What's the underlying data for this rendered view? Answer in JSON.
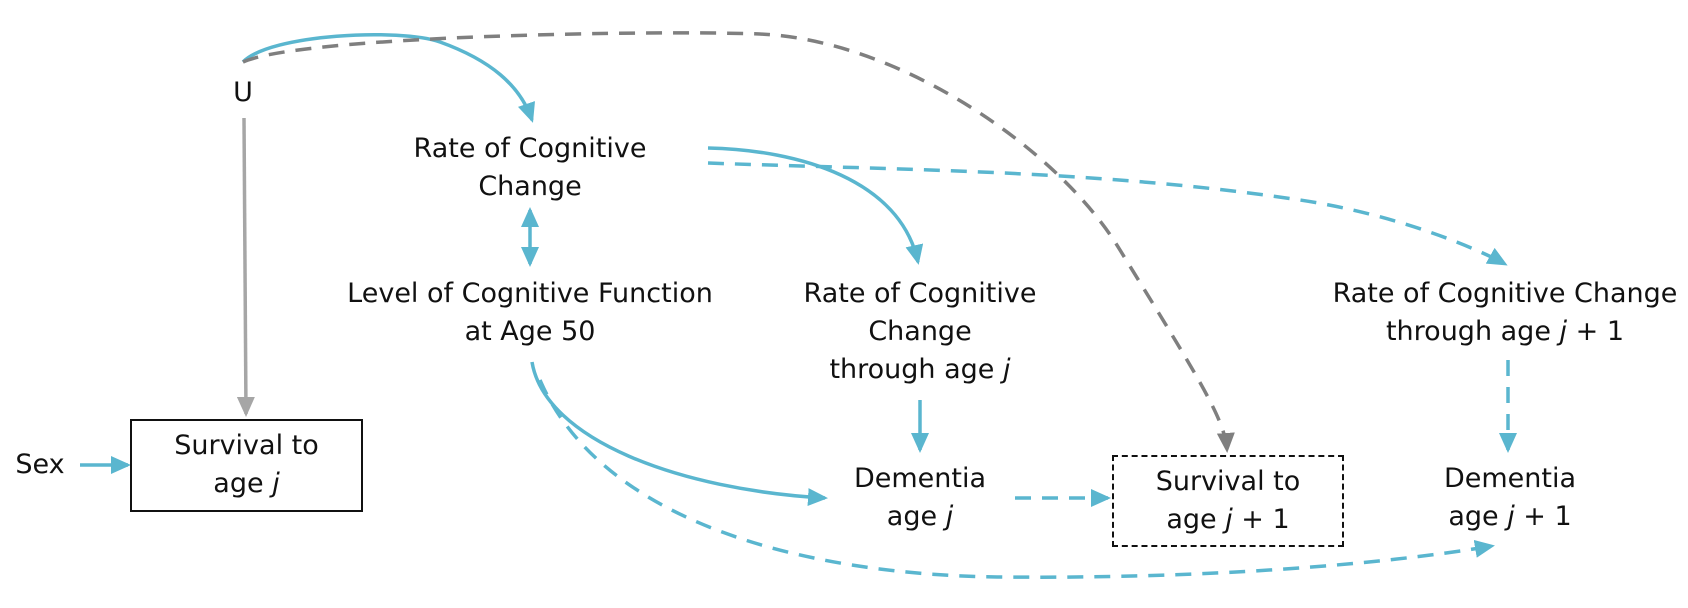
{
  "colors": {
    "blue": "#5ab6cf",
    "gray_solid": "#a6a6a6",
    "gray_dashed": "#7f7f7f",
    "text": "#111111"
  },
  "nodes": {
    "u": {
      "line1": "U"
    },
    "rate_cog_change": {
      "line1": "Rate of Cognitive",
      "line2": "Change"
    },
    "level_cog_function": {
      "line1": "Level of Cognitive Function",
      "line2": "at Age 50"
    },
    "rate_through_j": {
      "line1": "Rate of Cognitive",
      "line2": "Change",
      "line3_prefix": "through age ",
      "line3_var": "j"
    },
    "rate_through_j1": {
      "line1": "Rate of Cognitive Change",
      "line2_prefix": "through age ",
      "line2_var": "j",
      "line2_suffix": " + 1"
    },
    "sex": {
      "line1": "Sex"
    },
    "survival_j": {
      "line1": "Survival to",
      "line2_prefix": "age ",
      "line2_var": "j"
    },
    "dementia_j": {
      "line1": "Dementia",
      "line2_prefix": "age ",
      "line2_var": "j"
    },
    "survival_j1": {
      "line1": "Survival to",
      "line2_prefix": "age ",
      "line2_var": "j",
      "line2_suffix": " + 1"
    },
    "dementia_j1": {
      "line1": "Dementia",
      "line2_prefix": "age ",
      "line2_var": "j",
      "line2_suffix": " + 1"
    }
  },
  "edges": [
    {
      "from": "U",
      "to": "Rate of Cognitive Change",
      "style": "solid",
      "color": "blue"
    },
    {
      "from": "U",
      "to": "Survival to age j + 1",
      "style": "dashed",
      "color": "gray_dashed"
    },
    {
      "from": "U",
      "to": "Survival to age j",
      "style": "solid",
      "color": "gray_solid"
    },
    {
      "from": "Rate of Cognitive Change",
      "to": "Level of Cognitive Function at Age 50",
      "style": "solid",
      "color": "blue",
      "bidirectional": true
    },
    {
      "from": "Rate of Cognitive Change",
      "to": "Rate of Cognitive Change through age j",
      "style": "solid",
      "color": "blue"
    },
    {
      "from": "Rate of Cognitive Change",
      "to": "Rate of Cognitive Change through age j + 1",
      "style": "dashed",
      "color": "blue"
    },
    {
      "from": "Rate of Cognitive Change through age j",
      "to": "Dementia age j",
      "style": "solid",
      "color": "blue"
    },
    {
      "from": "Rate of Cognitive Change through age j + 1",
      "to": "Dementia age j + 1",
      "style": "dashed",
      "color": "blue"
    },
    {
      "from": "Level of Cognitive Function at Age 50",
      "to": "Dementia age j",
      "style": "solid",
      "color": "blue"
    },
    {
      "from": "Level of Cognitive Function at Age 50",
      "to": "Dementia age j + 1",
      "style": "dashed",
      "color": "blue"
    },
    {
      "from": "Dementia age j",
      "to": "Survival to age j + 1",
      "style": "dashed",
      "color": "blue"
    },
    {
      "from": "Sex",
      "to": "Survival to age j",
      "style": "solid",
      "color": "blue"
    }
  ]
}
